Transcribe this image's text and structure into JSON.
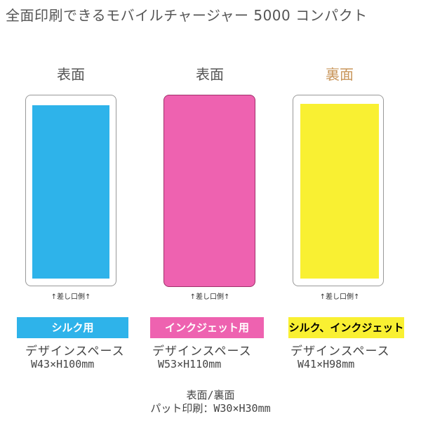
{
  "title": "全面印刷できるモバイルチャージャー 5000 コンパクト",
  "panels": [
    {
      "heading": "表面",
      "caption": "↑差し口側↑",
      "badge": "シルク用",
      "design_label": "デザインスペース",
      "size": "W43×H100mm"
    },
    {
      "heading": "表面",
      "caption": "↑差し口側↑",
      "badge": "インクジェット用",
      "design_label": "デザインスペース",
      "size": "W53×H110mm"
    },
    {
      "heading": "裏面",
      "caption": "↑差し口側↑",
      "badge": "シルク、インクジェット",
      "design_label": "デザインスペース",
      "size": "W41×H98mm"
    }
  ],
  "footer": {
    "line1": "表面/裏面",
    "line2": "パット印刷：W30×H30mm"
  }
}
